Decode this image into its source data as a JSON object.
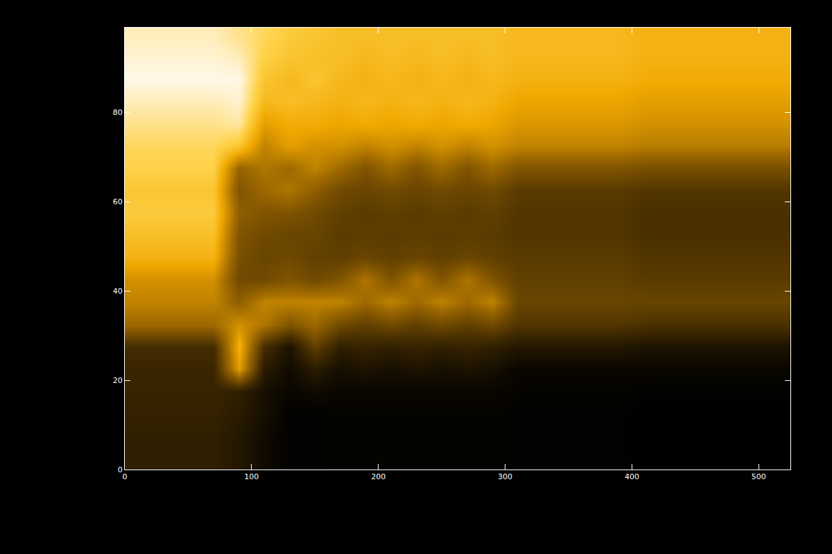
{
  "chart_data": {
    "type": "heatmap",
    "x": [
      10,
      30,
      50,
      70,
      90,
      110,
      130,
      150,
      170,
      190,
      210,
      230,
      250,
      270,
      290,
      310,
      330,
      350,
      370,
      390,
      410,
      430,
      450,
      470,
      490,
      510,
      530
    ],
    "y": [
      2.5,
      7.5,
      12.5,
      17.5,
      22.5,
      27.5,
      32.5,
      37.5,
      42.5,
      47.5,
      52.5,
      57.5,
      62.5,
      67.5,
      72.5,
      77.5,
      82.5,
      87.5,
      92.5,
      97.5
    ],
    "z": [
      [
        55,
        55,
        55,
        55,
        45,
        30,
        20,
        20,
        22,
        22,
        22,
        22,
        22,
        22,
        22,
        20,
        20,
        20,
        20,
        20,
        18,
        18,
        18,
        18,
        18,
        18,
        18
      ],
      [
        55,
        55,
        55,
        55,
        45,
        30,
        20,
        20,
        22,
        22,
        22,
        22,
        22,
        22,
        22,
        20,
        20,
        20,
        20,
        20,
        18,
        18,
        18,
        18,
        18,
        18,
        18
      ],
      [
        58,
        58,
        58,
        58,
        50,
        35,
        20,
        20,
        22,
        22,
        22,
        22,
        22,
        22,
        22,
        20,
        20,
        20,
        20,
        20,
        18,
        18,
        18,
        18,
        18,
        18,
        18
      ],
      [
        60,
        60,
        60,
        60,
        55,
        35,
        25,
        30,
        25,
        25,
        25,
        25,
        25,
        25,
        25,
        22,
        22,
        22,
        22,
        22,
        20,
        20,
        20,
        20,
        20,
        20,
        20
      ],
      [
        62,
        62,
        62,
        62,
        170,
        50,
        30,
        50,
        35,
        40,
        35,
        40,
        35,
        40,
        35,
        25,
        25,
        25,
        25,
        25,
        25,
        25,
        25,
        25,
        25,
        25,
        25
      ],
      [
        70,
        70,
        70,
        70,
        185,
        70,
        40,
        90,
        55,
        60,
        55,
        60,
        55,
        60,
        55,
        45,
        45,
        45,
        45,
        45,
        40,
        40,
        40,
        40,
        40,
        40,
        40
      ],
      [
        130,
        130,
        130,
        130,
        160,
        140,
        110,
        130,
        100,
        90,
        100,
        90,
        100,
        90,
        100,
        80,
        80,
        80,
        80,
        80,
        75,
        75,
        75,
        75,
        75,
        75,
        75
      ],
      [
        150,
        150,
        150,
        150,
        120,
        150,
        150,
        150,
        150,
        130,
        150,
        130,
        150,
        130,
        150,
        95,
        95,
        95,
        95,
        95,
        95,
        95,
        95,
        95,
        95,
        95,
        95
      ],
      [
        160,
        160,
        160,
        160,
        100,
        100,
        110,
        100,
        110,
        140,
        110,
        140,
        110,
        140,
        110,
        90,
        90,
        90,
        90,
        90,
        85,
        85,
        85,
        85,
        85,
        85,
        85
      ],
      [
        185,
        185,
        185,
        185,
        105,
        95,
        100,
        90,
        90,
        95,
        90,
        95,
        90,
        95,
        90,
        85,
        85,
        85,
        85,
        85,
        80,
        80,
        80,
        80,
        80,
        80,
        80
      ],
      [
        195,
        195,
        195,
        195,
        110,
        100,
        95,
        95,
        85,
        88,
        85,
        88,
        85,
        88,
        85,
        80,
        80,
        80,
        80,
        80,
        75,
        75,
        75,
        75,
        75,
        75,
        75
      ],
      [
        205,
        205,
        205,
        205,
        120,
        110,
        110,
        100,
        90,
        85,
        90,
        85,
        90,
        85,
        90,
        80,
        80,
        80,
        80,
        80,
        75,
        75,
        75,
        75,
        75,
        75,
        75
      ],
      [
        200,
        200,
        200,
        200,
        110,
        130,
        140,
        120,
        100,
        95,
        100,
        95,
        100,
        95,
        100,
        85,
        85,
        85,
        85,
        85,
        80,
        80,
        80,
        80,
        80,
        80,
        80
      ],
      [
        210,
        210,
        210,
        210,
        125,
        140,
        130,
        150,
        130,
        110,
        130,
        110,
        130,
        110,
        130,
        110,
        110,
        110,
        110,
        110,
        105,
        105,
        105,
        105,
        105,
        105,
        105
      ],
      [
        215,
        215,
        215,
        215,
        200,
        150,
        170,
        160,
        160,
        150,
        160,
        150,
        160,
        150,
        160,
        150,
        150,
        150,
        150,
        150,
        145,
        145,
        145,
        145,
        145,
        145,
        145
      ],
      [
        225,
        225,
        225,
        225,
        230,
        170,
        180,
        180,
        175,
        180,
        175,
        180,
        175,
        180,
        175,
        165,
        165,
        165,
        165,
        165,
        160,
        160,
        160,
        160,
        160,
        160,
        160
      ],
      [
        235,
        235,
        235,
        235,
        240,
        190,
        195,
        190,
        185,
        190,
        185,
        190,
        185,
        190,
        185,
        175,
        175,
        175,
        175,
        175,
        170,
        170,
        170,
        170,
        170,
        170,
        170
      ],
      [
        245,
        245,
        245,
        245,
        245,
        200,
        190,
        200,
        190,
        185,
        190,
        185,
        190,
        185,
        190,
        185,
        185,
        185,
        185,
        185,
        180,
        180,
        180,
        180,
        180,
        180,
        180
      ],
      [
        240,
        240,
        240,
        240,
        235,
        210,
        200,
        195,
        195,
        190,
        195,
        190,
        195,
        190,
        195,
        190,
        190,
        190,
        190,
        190,
        185,
        185,
        185,
        185,
        185,
        185,
        185
      ],
      [
        235,
        235,
        235,
        235,
        225,
        215,
        205,
        200,
        195,
        195,
        195,
        195,
        195,
        195,
        195,
        190,
        190,
        190,
        190,
        190,
        185,
        185,
        185,
        185,
        185,
        185,
        185
      ]
    ],
    "xlim": [
      0,
      525
    ],
    "ylim": [
      0,
      99
    ],
    "xticks": [
      0,
      100,
      200,
      300,
      400,
      500
    ],
    "yticks": [
      0,
      20,
      40,
      60,
      80
    ]
  }
}
